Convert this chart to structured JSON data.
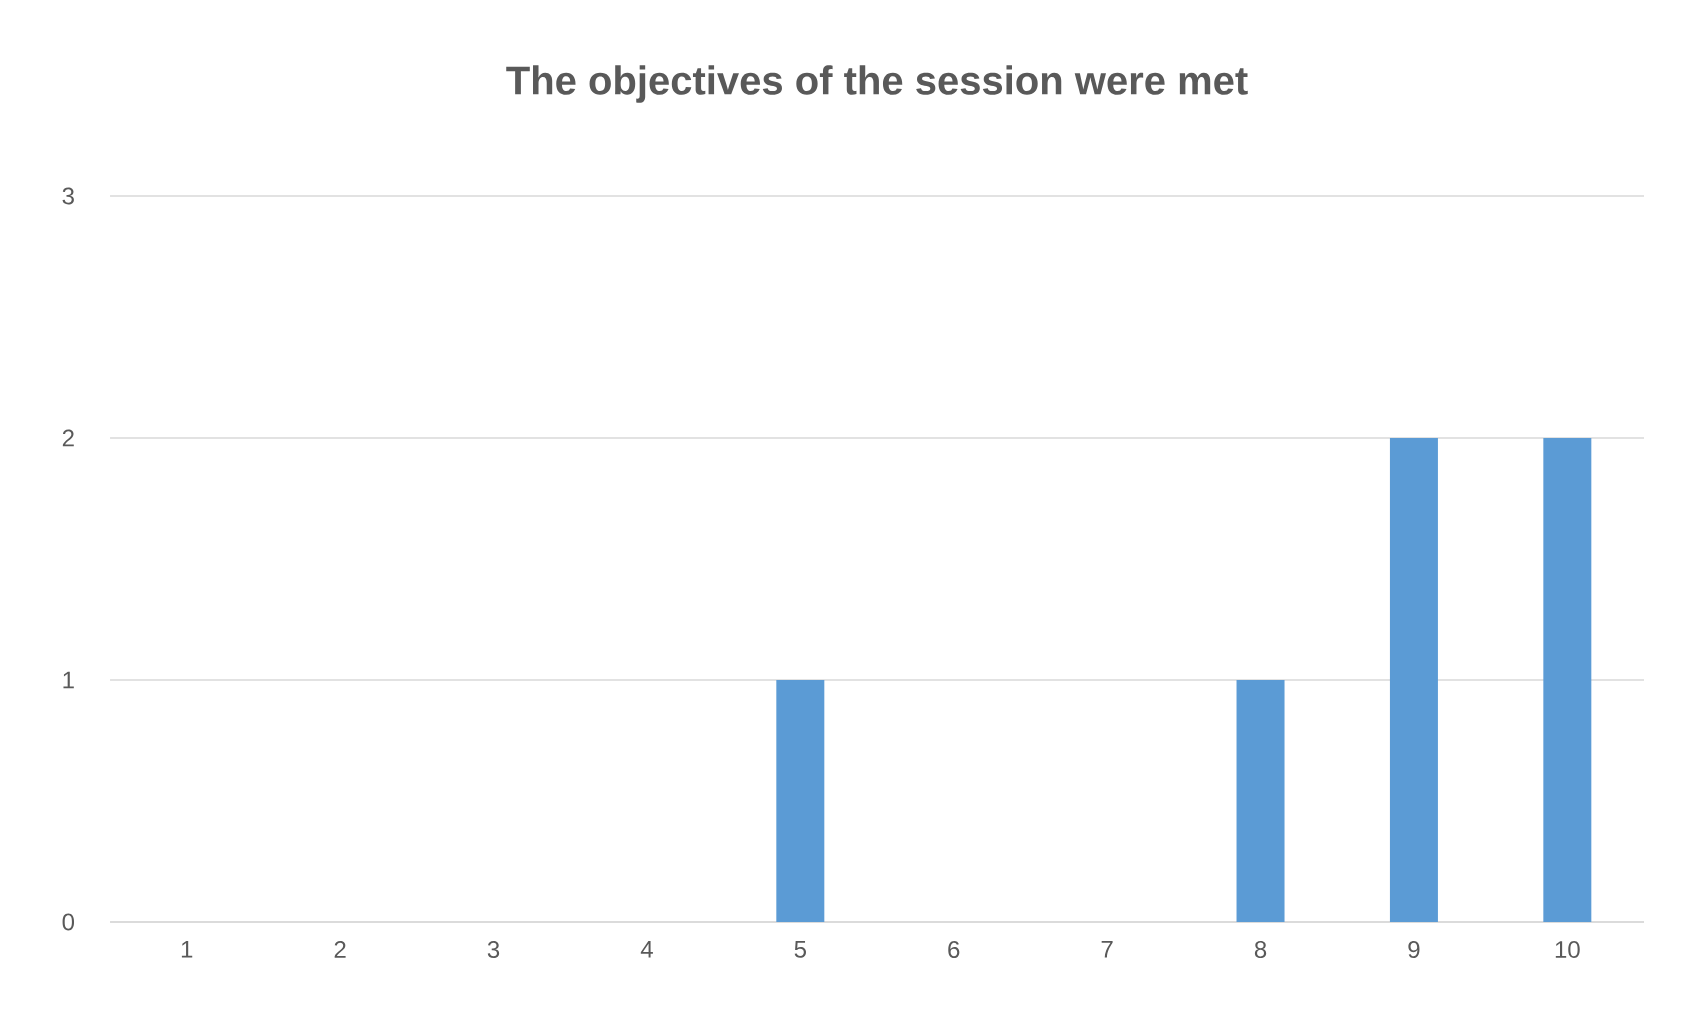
{
  "chart_data": {
    "type": "bar",
    "title": "The objectives of the session were met",
    "categories": [
      "1",
      "2",
      "3",
      "4",
      "5",
      "6",
      "7",
      "8",
      "9",
      "10"
    ],
    "values": [
      0,
      0,
      0,
      0,
      1,
      0,
      0,
      1,
      2,
      2
    ],
    "color": "#5b9bd5",
    "ylim": [
      0,
      3
    ],
    "yticks": [
      0,
      1,
      2,
      3
    ],
    "grid": "y"
  }
}
